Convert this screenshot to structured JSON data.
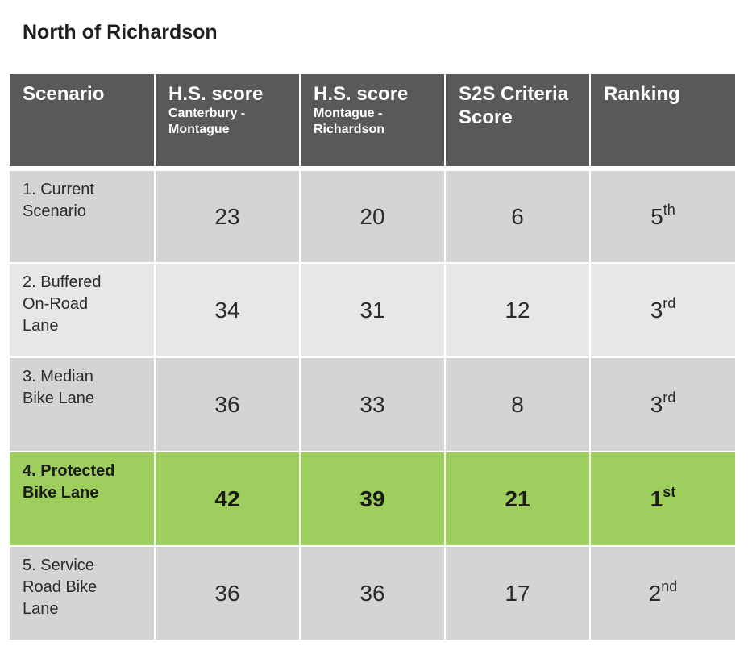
{
  "title": "North of Richardson",
  "table": {
    "headers": [
      {
        "main": "Scenario",
        "sub": ""
      },
      {
        "main": "H.S. score",
        "sub": "Canterbury -\nMontague"
      },
      {
        "main": "H.S. score",
        "sub": "Montague -\nRichardson"
      },
      {
        "main": "S2S Criteria\nScore",
        "sub": ""
      },
      {
        "main": "Ranking",
        "sub": ""
      }
    ],
    "rows": [
      {
        "scenario": "1. Current\nScenario",
        "hs_canterbury_montague": "23",
        "hs_montague_richardson": "20",
        "s2s_criteria_score": "6",
        "rank_num": "5",
        "rank_suffix": "th",
        "highlighted": false
      },
      {
        "scenario": "2. Buffered\nOn-Road\nLane",
        "hs_canterbury_montague": "34",
        "hs_montague_richardson": "31",
        "s2s_criteria_score": "12",
        "rank_num": "3",
        "rank_suffix": "rd",
        "highlighted": false
      },
      {
        "scenario": "3. Median\nBike Lane",
        "hs_canterbury_montague": "36",
        "hs_montague_richardson": "33",
        "s2s_criteria_score": "8",
        "rank_num": "3",
        "rank_suffix": "rd",
        "highlighted": false
      },
      {
        "scenario": "4. Protected\nBike Lane",
        "hs_canterbury_montague": "42",
        "hs_montague_richardson": "39",
        "s2s_criteria_score": "21",
        "rank_num": "1",
        "rank_suffix": "st",
        "highlighted": true
      },
      {
        "scenario": "5. Service\nRoad Bike\nLane",
        "hs_canterbury_montague": "36",
        "hs_montague_richardson": "36",
        "s2s_criteria_score": "17",
        "rank_num": "2",
        "rank_suffix": "nd",
        "highlighted": false
      }
    ]
  },
  "colors": {
    "header_bg": "#595959",
    "row_dark": "#d4d4d4",
    "row_light": "#e7e7e7",
    "highlight": "#9ecf5e"
  }
}
